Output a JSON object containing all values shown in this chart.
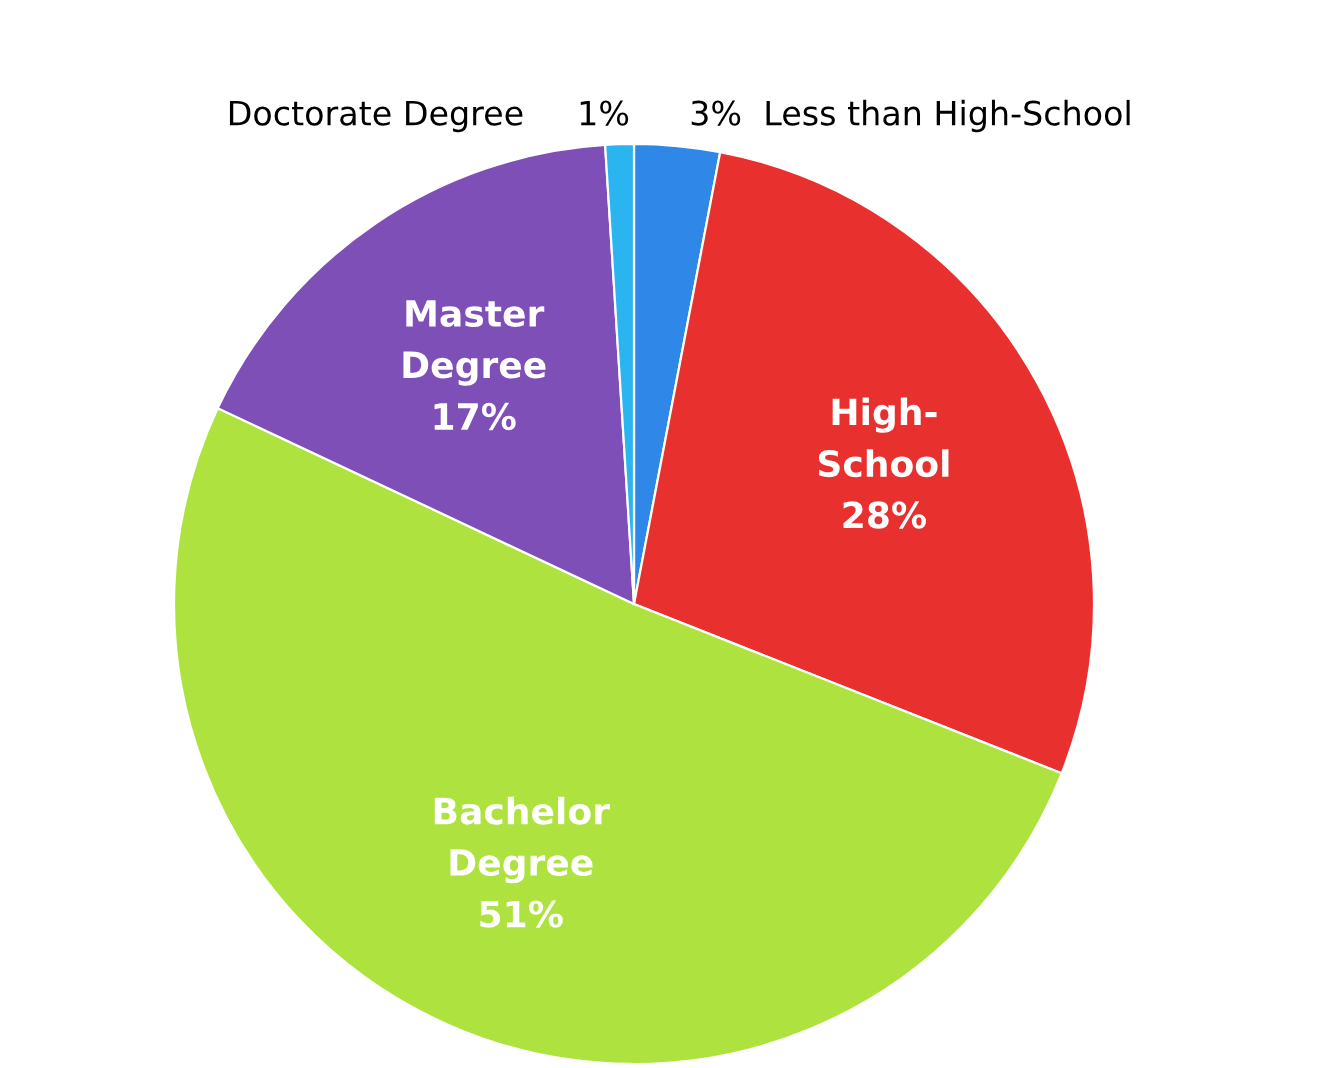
{
  "chart_data": {
    "type": "pie",
    "categories": [
      "Less than High-School",
      "High-\nSchool",
      "Bachelor\nDegree",
      "Master\nDegree",
      "Doctorate Degree"
    ],
    "values": [
      3,
      28,
      51,
      17,
      1
    ],
    "value_labels": [
      "3%",
      "28%",
      "51%",
      "17%",
      "1%"
    ],
    "colors": [
      "#2f87e8",
      "#e8312e",
      "#aee23e",
      "#7e4fb7",
      "#2bb5f0"
    ],
    "legend": false
  }
}
